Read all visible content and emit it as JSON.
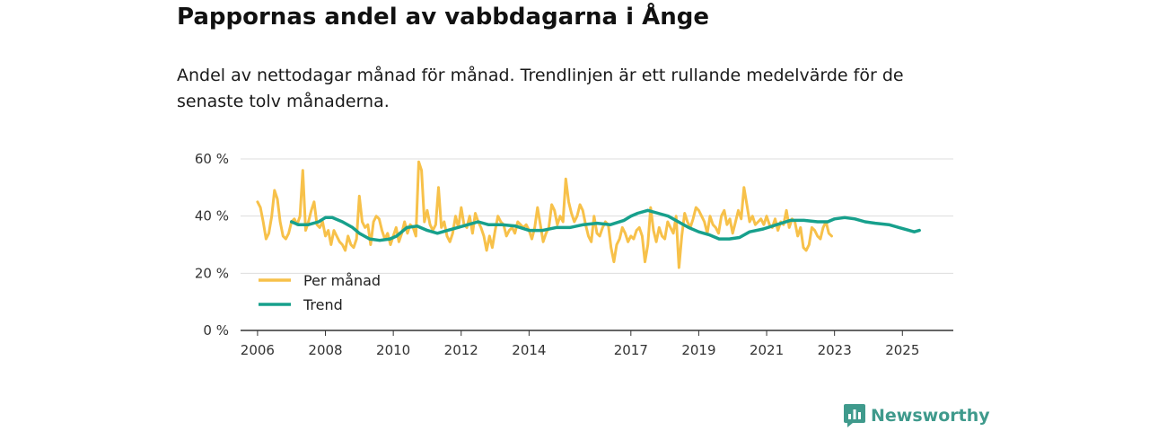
{
  "header": {
    "title": "Pappornas andel av vabbdagarna i Ånge",
    "subtitle": "Andel av nettodagar månad för månad. Trendlinjen är ett rullande medelvärde för de senaste tolv månaderna."
  },
  "brand": {
    "name": "Newsworthy",
    "icon": "newsworthy-logo-icon",
    "color": "#3f9a8c"
  },
  "colors": {
    "monthly": "#f7c14a",
    "trend": "#17a08c",
    "grid": "#dddddd",
    "axis": "#333333"
  },
  "chart_data": {
    "type": "line",
    "title": "Pappornas andel av vabbdagarna i Ånge",
    "xlabel": "",
    "ylabel": "",
    "ylim": [
      0,
      60
    ],
    "yticks": [
      0,
      20,
      40,
      60
    ],
    "ytick_labels": [
      "0 %",
      "20 %",
      "40 %",
      "60 %"
    ],
    "xlim": [
      2005.5,
      2026.5
    ],
    "xticks": [
      2006,
      2008,
      2010,
      2012,
      2014,
      2017,
      2019,
      2021,
      2023,
      2025
    ],
    "xtick_labels": [
      "2006",
      "2008",
      "2010",
      "2012",
      "2014",
      "2017",
      "2019",
      "2021",
      "2023",
      "2025"
    ],
    "legend": {
      "placement": "bottom-left",
      "entries": [
        "Per månad",
        "Trend"
      ]
    },
    "series": [
      {
        "name": "Per månad",
        "color": "#f7c14a",
        "x_start": 2006.0,
        "x_step": 0.08333,
        "values": [
          45.0,
          43.0,
          38.0,
          32.0,
          34.0,
          40.0,
          49.0,
          46.0,
          38.0,
          33.0,
          32.0,
          34.0,
          38.0,
          39.0,
          37.0,
          40.0,
          56.0,
          35.0,
          38.0,
          42.0,
          45.0,
          37.0,
          36.0,
          38.0,
          33.0,
          35.0,
          30.0,
          35.0,
          33.0,
          31.0,
          30.0,
          28.0,
          33.0,
          30.0,
          29.0,
          32.0,
          47.0,
          38.0,
          36.0,
          37.0,
          30.0,
          38.0,
          40.0,
          39.0,
          35.0,
          32.0,
          34.0,
          30.0,
          33.0,
          36.0,
          31.0,
          34.0,
          38.0,
          34.0,
          37.0,
          36.0,
          33.0,
          59.0,
          56.0,
          38.0,
          42.0,
          37.0,
          35.0,
          37.0,
          50.0,
          36.0,
          38.0,
          33.0,
          31.0,
          34.0,
          40.0,
          36.0,
          43.0,
          37.0,
          36.0,
          40.0,
          34.0,
          41.0,
          38.0,
          36.0,
          33.0,
          28.0,
          33.0,
          29.0,
          35.0,
          40.0,
          38.0,
          37.0,
          33.0,
          35.0,
          36.0,
          34.0,
          38.0,
          37.0,
          36.0,
          37.0,
          35.0,
          32.0,
          36.0,
          43.0,
          37.0,
          31.0,
          34.0,
          36.0,
          44.0,
          42.0,
          37.0,
          40.0,
          38.0,
          53.0,
          45.0,
          41.0,
          38.0,
          40.0,
          44.0,
          42.0,
          37.0,
          33.0,
          31.0,
          40.0,
          34.0,
          33.0,
          36.0,
          38.0,
          37.0,
          29.0,
          24.0,
          30.0,
          32.0,
          36.0,
          34.0,
          31.0,
          33.0,
          32.0,
          35.0,
          36.0,
          33.0,
          24.0,
          30.0,
          43.0,
          35.0,
          31.0,
          36.0,
          33.0,
          32.0,
          38.0,
          36.0,
          34.0,
          40.0,
          22.0,
          33.0,
          41.0,
          38.0,
          36.0,
          39.0,
          43.0,
          42.0,
          40.0,
          38.0,
          34.0,
          40.0,
          37.0,
          36.0,
          34.0,
          40.0,
          42.0,
          37.0,
          39.0,
          34.0,
          38.0,
          42.0,
          39.0,
          50.0,
          44.0,
          38.0,
          40.0,
          37.0,
          38.0,
          39.0,
          37.0,
          40.0,
          37.0,
          36.0,
          39.0,
          35.0,
          38.0,
          37.0,
          42.0,
          36.0,
          39.0,
          38.0,
          33.0,
          36.0,
          29.0,
          28.0,
          30.0,
          36.0,
          35.0,
          33.0,
          32.0,
          36.0,
          38.0,
          34.0,
          33.0
        ]
      },
      {
        "name": "Trend",
        "color": "#17a08c",
        "x": [
          2007.0,
          2007.2,
          2007.5,
          2007.8,
          2008.0,
          2008.2,
          2008.5,
          2008.8,
          2009.0,
          2009.3,
          2009.6,
          2009.9,
          2010.1,
          2010.4,
          2010.7,
          2011.0,
          2011.3,
          2011.6,
          2011.9,
          2012.2,
          2012.5,
          2012.8,
          2013.2,
          2013.6,
          2014.0,
          2014.4,
          2014.8,
          2015.2,
          2015.6,
          2016.0,
          2016.4,
          2016.8,
          2017.0,
          2017.2,
          2017.5,
          2017.8,
          2018.1,
          2018.4,
          2018.7,
          2019.0,
          2019.3,
          2019.6,
          2019.9,
          2020.2,
          2020.5,
          2020.9,
          2021.3,
          2021.7,
          2022.1,
          2022.5,
          2022.8,
          2023.0,
          2023.3,
          2023.6,
          2023.9,
          2024.2,
          2024.6,
          2024.9,
          2025.2,
          2025.35,
          2025.5
        ],
        "values": [
          38.0,
          37.0,
          37.0,
          38.0,
          39.5,
          39.5,
          38.0,
          36.0,
          34.0,
          32.0,
          31.5,
          32.0,
          33.0,
          36.0,
          36.5,
          35.0,
          34.0,
          35.0,
          36.0,
          37.0,
          38.0,
          37.0,
          37.0,
          36.5,
          35.0,
          35.0,
          36.0,
          36.0,
          37.0,
          37.5,
          37.0,
          38.5,
          40.0,
          41.0,
          42.0,
          41.0,
          40.0,
          38.0,
          36.0,
          34.5,
          33.5,
          32.0,
          32.0,
          32.5,
          34.5,
          35.5,
          37.0,
          38.5,
          38.5,
          38.0,
          38.0,
          39.0,
          39.5,
          39.0,
          38.0,
          37.5,
          37.0,
          36.0,
          35.0,
          34.5,
          35.0
        ]
      }
    ]
  }
}
